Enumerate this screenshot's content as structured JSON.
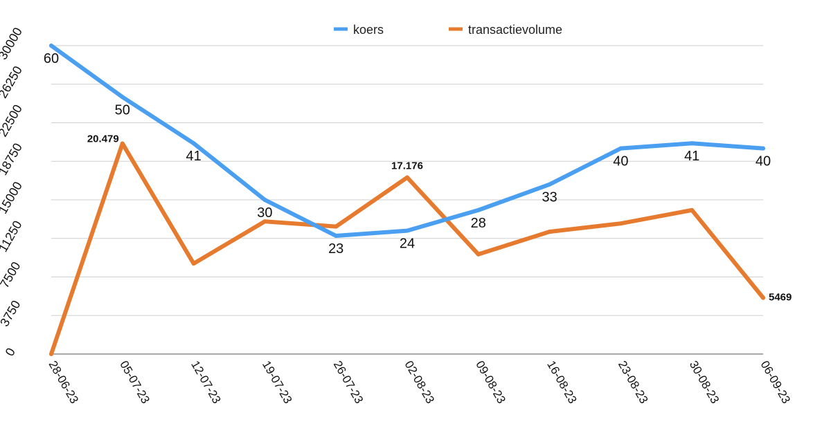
{
  "chart_data": {
    "type": "line",
    "categories": [
      "28-06-23",
      "05-07-23",
      "12-07-23",
      "19-07-23",
      "26-07-23",
      "02-08-23",
      "09-08-23",
      "16-08-23",
      "23-08-23",
      "30-08-23",
      "06-09-23"
    ],
    "ylim": [
      0,
      30000
    ],
    "yticks": [
      "0",
      "3750",
      "7500",
      "11250",
      "15000",
      "18750",
      "22500",
      "26250",
      "30000"
    ],
    "grid": true,
    "legend_position": "top-center",
    "series": [
      {
        "name": "koers",
        "color": "#4a9ff0",
        "values": [
          30000,
          25000,
          20500,
          15000,
          11500,
          12000,
          14000,
          16500,
          20000,
          20500,
          20000
        ],
        "data_labels": [
          "60",
          "50",
          "41",
          "30",
          "23",
          "24",
          "28",
          "33",
          "40",
          "41",
          "40"
        ]
      },
      {
        "name": "transactievolume",
        "color": "#e67a2e",
        "values": [
          0,
          20479,
          8800,
          12900,
          12400,
          17176,
          9700,
          11900,
          12700,
          14000,
          5469
        ],
        "data_labels": [
          "",
          "20.479",
          "",
          "",
          "",
          "17.176",
          "",
          "",
          "",
          "",
          "5469"
        ]
      }
    ]
  }
}
